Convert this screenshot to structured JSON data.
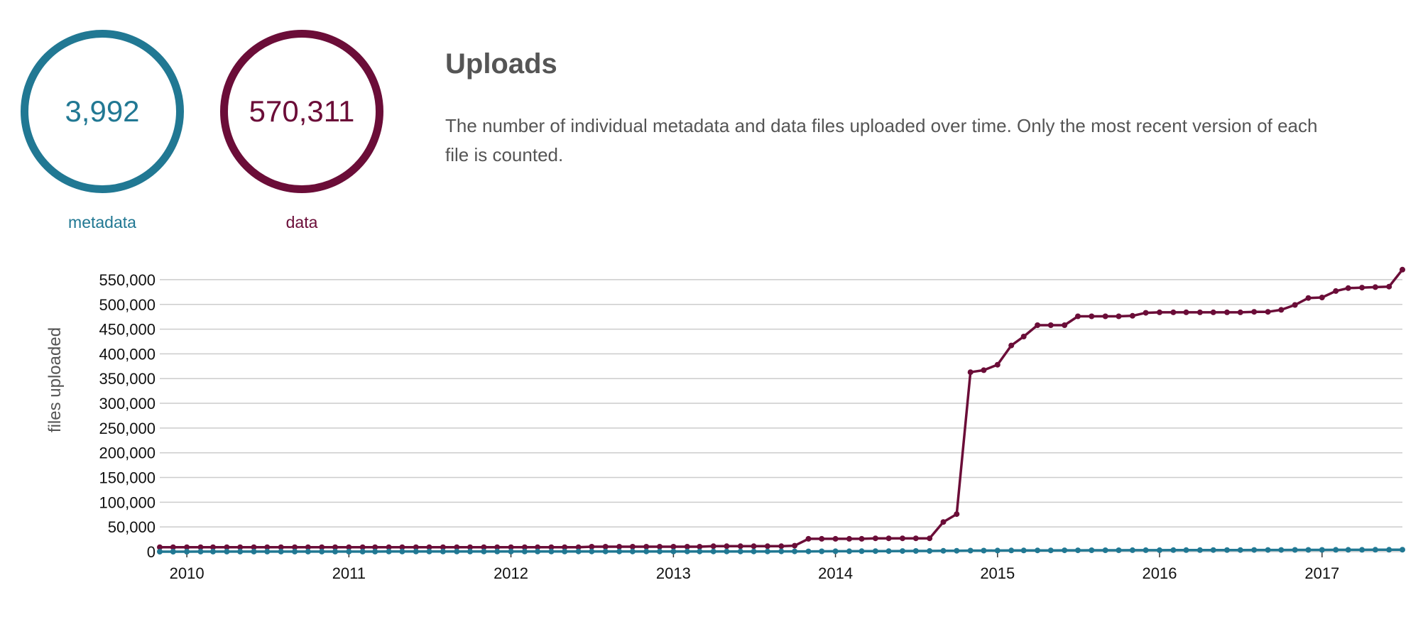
{
  "summary": {
    "metadata": {
      "count": "3,992",
      "label": "metadata",
      "color": "#217893"
    },
    "data": {
      "count": "570,311",
      "label": "data",
      "color": "#6b0d38"
    }
  },
  "header": {
    "title": "Uploads",
    "description": "The number of individual metadata and data files uploaded over time. Only the most recent version of each file is counted."
  },
  "chart_data": {
    "type": "line",
    "title": "",
    "xlabel": "",
    "ylabel": "files uploaded",
    "x_range": [
      "2009-11-01",
      "2017-07-01"
    ],
    "ylim": [
      0,
      570000
    ],
    "y_ticks": [
      0,
      50000,
      100000,
      150000,
      200000,
      250000,
      300000,
      350000,
      400000,
      450000,
      500000,
      550000
    ],
    "y_tick_labels": [
      "0",
      "50,000",
      "100,000",
      "150,000",
      "200,000",
      "250,000",
      "300,000",
      "350,000",
      "400,000",
      "450,000",
      "500,000",
      "550,000"
    ],
    "x_tick_labels": [
      "2010",
      "2011",
      "2012",
      "2013",
      "2014",
      "2015",
      "2016",
      "2017"
    ],
    "grid": true,
    "legend": "none",
    "series": [
      {
        "key": "data",
        "color": "#6b0d38",
        "points": [
          [
            "2009-11-01",
            9000
          ],
          [
            "2009-12-01",
            9000
          ],
          [
            "2010-01-01",
            9000
          ],
          [
            "2010-02-01",
            9000
          ],
          [
            "2010-03-01",
            9000
          ],
          [
            "2010-04-01",
            9000
          ],
          [
            "2010-05-01",
            9000
          ],
          [
            "2010-06-01",
            9000
          ],
          [
            "2010-07-01",
            9000
          ],
          [
            "2010-08-01",
            9000
          ],
          [
            "2010-09-01",
            9000
          ],
          [
            "2010-10-01",
            9000
          ],
          [
            "2010-11-01",
            9000
          ],
          [
            "2010-12-01",
            9000
          ],
          [
            "2011-01-01",
            9000
          ],
          [
            "2011-02-01",
            9000
          ],
          [
            "2011-03-01",
            9000
          ],
          [
            "2011-04-01",
            9000
          ],
          [
            "2011-05-01",
            9000
          ],
          [
            "2011-06-01",
            9000
          ],
          [
            "2011-07-01",
            9000
          ],
          [
            "2011-08-01",
            9000
          ],
          [
            "2011-09-01",
            9000
          ],
          [
            "2011-10-01",
            9000
          ],
          [
            "2011-11-01",
            9000
          ],
          [
            "2011-12-01",
            9000
          ],
          [
            "2012-01-01",
            9000
          ],
          [
            "2012-02-01",
            9000
          ],
          [
            "2012-03-01",
            9000
          ],
          [
            "2012-04-01",
            9000
          ],
          [
            "2012-05-01",
            9000
          ],
          [
            "2012-06-01",
            9000
          ],
          [
            "2012-07-01",
            10000
          ],
          [
            "2012-08-01",
            10000
          ],
          [
            "2012-09-01",
            10000
          ],
          [
            "2012-10-01",
            10000
          ],
          [
            "2012-11-01",
            10000
          ],
          [
            "2012-12-01",
            10000
          ],
          [
            "2013-01-01",
            10000
          ],
          [
            "2013-02-01",
            10000
          ],
          [
            "2013-03-01",
            10000
          ],
          [
            "2013-04-01",
            11000
          ],
          [
            "2013-05-01",
            11000
          ],
          [
            "2013-06-01",
            11000
          ],
          [
            "2013-07-01",
            11000
          ],
          [
            "2013-08-01",
            11000
          ],
          [
            "2013-09-01",
            11000
          ],
          [
            "2013-10-01",
            12000
          ],
          [
            "2013-11-01",
            26000
          ],
          [
            "2013-12-01",
            26000
          ],
          [
            "2014-01-01",
            26000
          ],
          [
            "2014-02-01",
            26000
          ],
          [
            "2014-03-01",
            26000
          ],
          [
            "2014-04-01",
            27000
          ],
          [
            "2014-05-01",
            27000
          ],
          [
            "2014-06-01",
            27000
          ],
          [
            "2014-07-01",
            27000
          ],
          [
            "2014-08-01",
            27000
          ],
          [
            "2014-09-01",
            60000
          ],
          [
            "2014-10-01",
            76000
          ],
          [
            "2014-11-01",
            363000
          ],
          [
            "2014-12-01",
            367000
          ],
          [
            "2015-01-01",
            378000
          ],
          [
            "2015-02-01",
            417000
          ],
          [
            "2015-03-01",
            435000
          ],
          [
            "2015-04-01",
            458000
          ],
          [
            "2015-05-01",
            458000
          ],
          [
            "2015-06-01",
            458000
          ],
          [
            "2015-07-01",
            476000
          ],
          [
            "2015-08-01",
            476000
          ],
          [
            "2015-09-01",
            476000
          ],
          [
            "2015-10-01",
            476000
          ],
          [
            "2015-11-01",
            477000
          ],
          [
            "2015-12-01",
            483000
          ],
          [
            "2016-01-01",
            484000
          ],
          [
            "2016-02-01",
            484000
          ],
          [
            "2016-03-01",
            484000
          ],
          [
            "2016-04-01",
            484000
          ],
          [
            "2016-05-01",
            484000
          ],
          [
            "2016-06-01",
            484000
          ],
          [
            "2016-07-01",
            484000
          ],
          [
            "2016-08-01",
            485000
          ],
          [
            "2016-09-01",
            485000
          ],
          [
            "2016-10-01",
            489000
          ],
          [
            "2016-11-01",
            499000
          ],
          [
            "2016-12-01",
            513000
          ],
          [
            "2017-01-01",
            514000
          ],
          [
            "2017-02-01",
            527000
          ],
          [
            "2017-03-01",
            533000
          ],
          [
            "2017-04-01",
            534000
          ],
          [
            "2017-05-01",
            535000
          ],
          [
            "2017-06-01",
            536000
          ],
          [
            "2017-07-01",
            570311
          ]
        ]
      },
      {
        "key": "metadata",
        "color": "#217893",
        "points": [
          [
            "2009-11-01",
            50
          ],
          [
            "2009-12-01",
            60
          ],
          [
            "2010-01-01",
            70
          ],
          [
            "2010-02-01",
            80
          ],
          [
            "2010-03-01",
            90
          ],
          [
            "2010-04-01",
            100
          ],
          [
            "2010-05-01",
            110
          ],
          [
            "2010-06-01",
            120
          ],
          [
            "2010-07-01",
            130
          ],
          [
            "2010-08-01",
            140
          ],
          [
            "2010-09-01",
            150
          ],
          [
            "2010-10-01",
            160
          ],
          [
            "2010-11-01",
            170
          ],
          [
            "2010-12-01",
            180
          ],
          [
            "2011-01-01",
            190
          ],
          [
            "2011-02-01",
            200
          ],
          [
            "2011-03-01",
            210
          ],
          [
            "2011-04-01",
            220
          ],
          [
            "2011-05-01",
            230
          ],
          [
            "2011-06-01",
            240
          ],
          [
            "2011-07-01",
            250
          ],
          [
            "2011-08-01",
            260
          ],
          [
            "2011-09-01",
            270
          ],
          [
            "2011-10-01",
            280
          ],
          [
            "2011-11-01",
            290
          ],
          [
            "2011-12-01",
            300
          ],
          [
            "2012-01-01",
            310
          ],
          [
            "2012-02-01",
            320
          ],
          [
            "2012-03-01",
            330
          ],
          [
            "2012-04-01",
            340
          ],
          [
            "2012-05-01",
            350
          ],
          [
            "2012-06-01",
            360
          ],
          [
            "2012-07-01",
            370
          ],
          [
            "2012-08-01",
            380
          ],
          [
            "2012-09-01",
            390
          ],
          [
            "2012-10-01",
            400
          ],
          [
            "2012-11-01",
            410
          ],
          [
            "2012-12-01",
            420
          ],
          [
            "2013-01-01",
            430
          ],
          [
            "2013-02-01",
            440
          ],
          [
            "2013-03-01",
            450
          ],
          [
            "2013-04-01",
            460
          ],
          [
            "2013-05-01",
            470
          ],
          [
            "2013-06-01",
            480
          ],
          [
            "2013-07-01",
            490
          ],
          [
            "2013-08-01",
            500
          ],
          [
            "2013-09-01",
            510
          ],
          [
            "2013-10-01",
            520
          ],
          [
            "2013-11-01",
            600
          ],
          [
            "2013-12-01",
            700
          ],
          [
            "2014-01-01",
            800
          ],
          [
            "2014-02-01",
            900
          ],
          [
            "2014-03-01",
            1000
          ],
          [
            "2014-04-01",
            1100
          ],
          [
            "2014-05-01",
            1200
          ],
          [
            "2014-06-01",
            1300
          ],
          [
            "2014-07-01",
            1400
          ],
          [
            "2014-08-01",
            1500
          ],
          [
            "2014-09-01",
            1700
          ],
          [
            "2014-10-01",
            1900
          ],
          [
            "2014-11-01",
            2100
          ],
          [
            "2014-12-01",
            2200
          ],
          [
            "2015-01-01",
            2300
          ],
          [
            "2015-02-01",
            2400
          ],
          [
            "2015-03-01",
            2500
          ],
          [
            "2015-04-01",
            2600
          ],
          [
            "2015-05-01",
            2650
          ],
          [
            "2015-06-01",
            2700
          ],
          [
            "2015-07-01",
            2750
          ],
          [
            "2015-08-01",
            2800
          ],
          [
            "2015-09-01",
            2850
          ],
          [
            "2015-10-01",
            2900
          ],
          [
            "2015-11-01",
            2950
          ],
          [
            "2015-12-01",
            3000
          ],
          [
            "2016-01-01",
            3050
          ],
          [
            "2016-02-01",
            3100
          ],
          [
            "2016-03-01",
            3150
          ],
          [
            "2016-04-01",
            3200
          ],
          [
            "2016-05-01",
            3250
          ],
          [
            "2016-06-01",
            3300
          ],
          [
            "2016-07-01",
            3350
          ],
          [
            "2016-08-01",
            3400
          ],
          [
            "2016-09-01",
            3450
          ],
          [
            "2016-10-01",
            3500
          ],
          [
            "2016-11-01",
            3550
          ],
          [
            "2016-12-01",
            3600
          ],
          [
            "2017-01-01",
            3650
          ],
          [
            "2017-02-01",
            3700
          ],
          [
            "2017-03-01",
            3750
          ],
          [
            "2017-04-01",
            3800
          ],
          [
            "2017-05-01",
            3850
          ],
          [
            "2017-06-01",
            3900
          ],
          [
            "2017-07-01",
            3992
          ]
        ]
      }
    ]
  }
}
